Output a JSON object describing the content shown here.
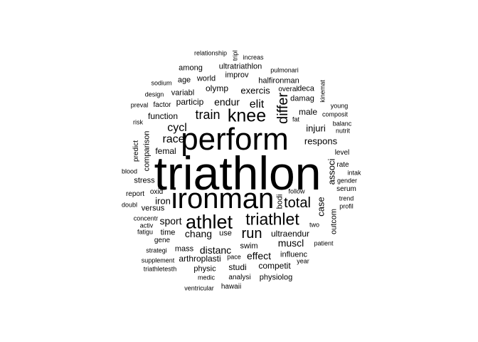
{
  "word_cloud": {
    "words": [
      "triathlon",
      "perform",
      "ironman",
      "athlet",
      "triathlet",
      "knee",
      "run",
      "total",
      "differ",
      "train",
      "race",
      "cycl",
      "elit",
      "endur",
      "muscl",
      "chang",
      "distanc",
      "effect",
      "injuri",
      "respons",
      "male",
      "damag",
      "associ",
      "case",
      "exercis",
      "olymp",
      "particip",
      "variabl",
      "function",
      "femal",
      "sport",
      "iron",
      "outcom",
      "ultraendur",
      "bodi",
      "swim",
      "studi",
      "competit",
      "influenc",
      "arthroplasti",
      "physic",
      "mass",
      "use",
      "time",
      "gene",
      "comparison",
      "predict",
      "stress",
      "versus",
      "oxid",
      "report",
      "level",
      "rate",
      "intak",
      "serum",
      "gender",
      "profil",
      "trend",
      "follow",
      "two",
      "patient",
      "year",
      "physiolog",
      "analysi",
      "medic",
      "pace",
      "hawaii",
      "ventricular",
      "triathletesth",
      "supplement",
      "strategi",
      "fatigu",
      "activ",
      "concentr",
      "doubl",
      "blood",
      "risk",
      "preval",
      "design",
      "sodium",
      "factor",
      "age",
      "world",
      "improv",
      "among",
      "ultratriathlon",
      "relationship",
      "tripl",
      "increas",
      "pulmonari",
      "halfironman",
      "overal",
      "deca",
      "kinemat",
      "young",
      "composit",
      "fat",
      "balanc",
      "nutrit"
    ]
  }
}
